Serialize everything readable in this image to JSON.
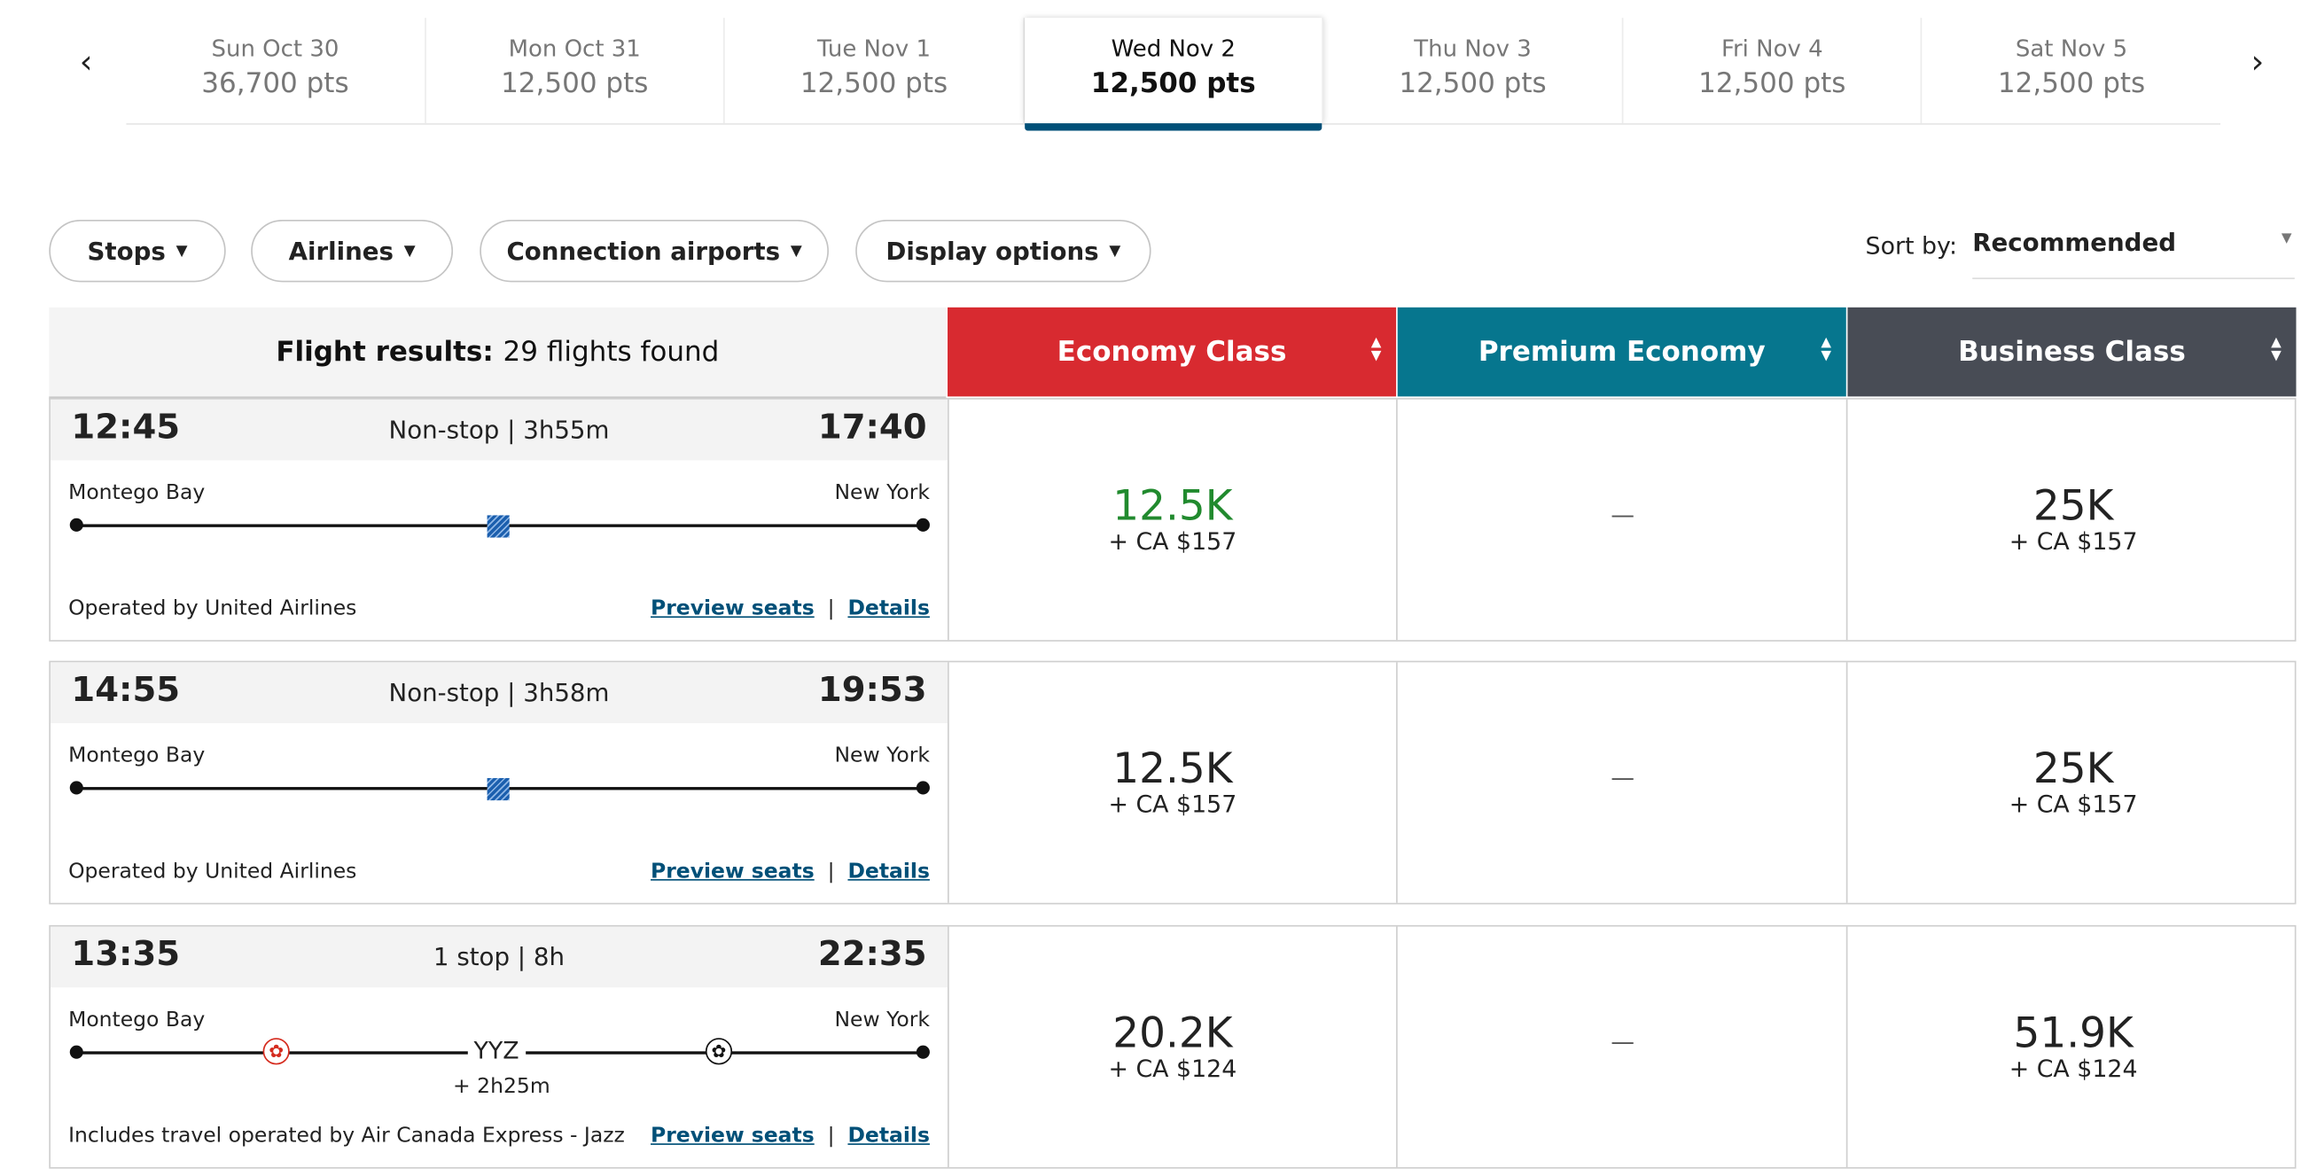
{
  "date_nav": {
    "prev_icon": "chevron-left-icon",
    "next_icon": "chevron-right-icon",
    "dates": [
      {
        "date": "Sun Oct 30",
        "points": "36,700 pts",
        "selected": false
      },
      {
        "date": "Mon Oct 31",
        "points": "12,500 pts",
        "selected": false
      },
      {
        "date": "Tue Nov 1",
        "points": "12,500 pts",
        "selected": false
      },
      {
        "date": "Wed Nov 2",
        "points": "12,500 pts",
        "selected": true
      },
      {
        "date": "Thu Nov 3",
        "points": "12,500 pts",
        "selected": false
      },
      {
        "date": "Fri Nov 4",
        "points": "12,500 pts",
        "selected": false
      },
      {
        "date": "Sat Nov 5",
        "points": "12,500 pts",
        "selected": false
      }
    ]
  },
  "filters": {
    "stops": "Stops",
    "airlines": "Airlines",
    "connection_airports": "Connection airports",
    "display_options": "Display options"
  },
  "sort": {
    "label": "Sort by:",
    "value": "Recommended"
  },
  "results_header": {
    "label": "Flight results:",
    "count": "29 flights found"
  },
  "cabins": [
    {
      "name": "Economy Class",
      "color": "#d82a30"
    },
    {
      "name": "Premium Economy",
      "color": "#06768e"
    },
    {
      "name": "Business Class",
      "color": "#484c55"
    }
  ],
  "flights": [
    {
      "depart": "12:45",
      "summary": "Non-stop | 3h55m",
      "arrive": "17:40",
      "origin": "Montego Bay",
      "destination": "New York",
      "operator": "Operated by United Airlines",
      "preview_seats": "Preview seats",
      "details": "Details",
      "airline_icon": "united-airlines-icon",
      "fares": [
        {
          "points": "12.5K",
          "cash": "+ CA $157",
          "lowest": true
        },
        {
          "na": "—"
        },
        {
          "points": "25K",
          "cash": "+ CA $157"
        }
      ]
    },
    {
      "depart": "14:55",
      "summary": "Non-stop | 3h58m",
      "arrive": "19:53",
      "origin": "Montego Bay",
      "destination": "New York",
      "operator": "Operated by United Airlines",
      "preview_seats": "Preview seats",
      "details": "Details",
      "airline_icon": "united-airlines-icon",
      "fares": [
        {
          "points": "12.5K",
          "cash": "+ CA $157"
        },
        {
          "na": "—"
        },
        {
          "points": "25K",
          "cash": "+ CA $157"
        }
      ]
    },
    {
      "depart": "13:35",
      "summary": "1 stop | 8h",
      "arrive": "22:35",
      "origin": "Montego Bay",
      "destination": "New York",
      "stop_airport": "YYZ",
      "layover": "+ 2h25m",
      "operator": "Includes travel operated by Air Canada Express - Jazz",
      "preview_seats": "Preview seats",
      "details": "Details",
      "fares": [
        {
          "points": "20.2K",
          "cash": "+ CA $124"
        },
        {
          "na": "—"
        },
        {
          "points": "51.9K",
          "cash": "+ CA $124"
        }
      ]
    }
  ]
}
